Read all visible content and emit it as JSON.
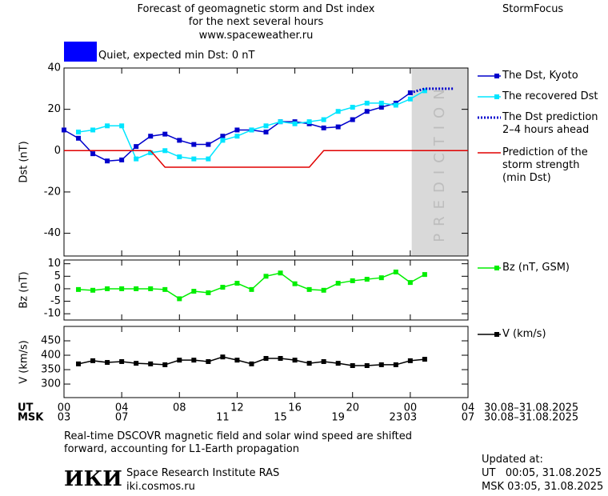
{
  "header": {
    "title": "Forecast of geomagnetic storm and Dst index",
    "subtitle": "for the next several hours",
    "url": "www.spaceweather.ru",
    "product": "StormFocus"
  },
  "chart_data": [
    {
      "type": "line",
      "y_label": "Dst (nT)",
      "xlim": [
        0,
        28
      ],
      "ylim": [
        -51,
        40
      ],
      "yticks": [
        -40,
        -20,
        0,
        20,
        40
      ],
      "status": {
        "text": "Quiet, expected min Dst: 0 nT",
        "color": "#0000ff"
      },
      "shade": {
        "from": 24.1,
        "to": 28,
        "label": "PREDICTION",
        "color": "#d9d9d9"
      },
      "series": [
        {
          "name": "The Dst, Kyoto",
          "color": "#0000cc",
          "marker": "square",
          "x": [
            0,
            1,
            2,
            3,
            4,
            5,
            6,
            7,
            8,
            9,
            10,
            11,
            12,
            13,
            14,
            15,
            16,
            17,
            18,
            19,
            20,
            21,
            22,
            23,
            24
          ],
          "values": [
            10,
            6,
            -1.5,
            -5,
            -4.5,
            2,
            7,
            8,
            5,
            3,
            3,
            7,
            10,
            10,
            9,
            14,
            14,
            13,
            11,
            11.5,
            15,
            19,
            21,
            23,
            28
          ]
        },
        {
          "name": "The recovered Dst",
          "color": "#00e5ff",
          "marker": "square",
          "x": [
            1,
            2,
            3,
            4,
            5,
            6,
            7,
            8,
            9,
            10,
            11,
            12,
            13,
            14,
            15,
            16,
            17,
            18,
            19,
            20,
            21,
            22,
            23,
            24,
            25
          ],
          "values": [
            9,
            10,
            12,
            12,
            -4,
            -1,
            0,
            -3,
            -4,
            -4,
            5,
            7,
            10,
            12,
            14,
            13,
            14,
            15,
            19,
            21,
            23,
            23,
            22,
            25,
            29
          ]
        },
        {
          "name": "The Dst prediction\n2–4 hours ahead",
          "color": "#0000cc",
          "marker": "none",
          "dash": "dotted",
          "x": [
            24,
            25,
            26,
            27
          ],
          "values": [
            28,
            30,
            30,
            30
          ]
        },
        {
          "name": "Prediction of the\nstorm strength\n(min Dst)",
          "color": "#e00000",
          "marker": "none",
          "x": [
            0,
            6,
            7,
            17,
            18,
            28
          ],
          "values": [
            0,
            0,
            -8,
            -8,
            0,
            0
          ]
        }
      ]
    },
    {
      "type": "line",
      "y_label": "Bz (nT)",
      "xlim": [
        0,
        28
      ],
      "ylim": [
        -12.5,
        11.5
      ],
      "yticks": [
        -10,
        -5,
        0,
        5,
        10
      ],
      "series": [
        {
          "name": "Bz (nT, GSM)",
          "color": "#00ee00",
          "marker": "square",
          "x": [
            1,
            2,
            3,
            4,
            5,
            6,
            7,
            8,
            9,
            10,
            11,
            12,
            13,
            14,
            15,
            16,
            17,
            18,
            19,
            20,
            21,
            22,
            23,
            24,
            25
          ],
          "values": [
            -0.3,
            -0.6,
            0,
            0,
            0,
            0,
            -0.3,
            -4,
            -1,
            -1.6,
            0.6,
            2.2,
            -0.3,
            5,
            6.3,
            2,
            -0.3,
            -0.6,
            2.2,
            3.2,
            3.8,
            4.4,
            6.7,
            2.5,
            5.7
          ]
        }
      ]
    },
    {
      "type": "line",
      "y_label": "V (km/s)",
      "xlim": [
        0,
        28
      ],
      "ylim": [
        253,
        500
      ],
      "yticks": [
        300,
        350,
        400,
        450
      ],
      "series": [
        {
          "name": "V (km/s)",
          "color": "#000000",
          "marker": "square",
          "x": [
            1,
            2,
            3,
            4,
            5,
            6,
            7,
            8,
            9,
            10,
            11,
            12,
            13,
            14,
            15,
            16,
            17,
            18,
            19,
            20,
            21,
            22,
            23,
            24,
            25
          ],
          "values": [
            370,
            381,
            375,
            378,
            372,
            370,
            367,
            383,
            383,
            378,
            394,
            383,
            370,
            389,
            389,
            383,
            372,
            378,
            372,
            364,
            364,
            367,
            367,
            381,
            386
          ]
        }
      ],
      "ut_label": "UT",
      "msk_label": "MSK",
      "ut_range": "30.08–31.08.2025",
      "msk_range": "30.08–31.08.2025",
      "xticks": [
        {
          "value": 0,
          "label": "00"
        },
        {
          "value": 4,
          "label": "04"
        },
        {
          "value": 8,
          "label": "08"
        },
        12,
        16,
        20,
        {
          "value": 24,
          "label": "00"
        },
        {
          "value": 28,
          "label": "04"
        }
      ],
      "msk_ticks": [
        {
          "value": 0,
          "label": "03"
        },
        {
          "value": 4,
          "label": "07"
        },
        11,
        15,
        19,
        23,
        {
          "value": 24,
          "label": "03"
        },
        {
          "value": 28,
          "label": "07"
        }
      ]
    }
  ],
  "note": "Real-time DSCOVR magnetic field and solar wind speed are shifted\nforward, accounting for L1-Earth propagation",
  "institute": {
    "logo": "ИКИ",
    "name": "Space Research Institute RAS",
    "url": "iki.cosmos.ru"
  },
  "updated": {
    "label": "Updated at:",
    "ut": "UT   00:05, 31.08.2025",
    "msk": "MSK 03:05, 31.08.2025"
  }
}
